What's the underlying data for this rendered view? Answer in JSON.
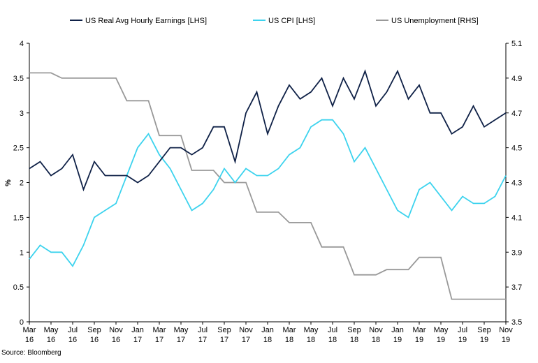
{
  "chart_data": {
    "type": "line",
    "title": "",
    "xlabel": "",
    "ylabel_left": "%",
    "ylabel_right": "",
    "ylim_left": [
      0,
      4
    ],
    "ylim_right": [
      3.5,
      5.1
    ],
    "y_ticks_left": [
      "0",
      "0.5",
      "1",
      "1.5",
      "2",
      "2.5",
      "3",
      "3.5",
      "4"
    ],
    "y_ticks_right": [
      "3.5",
      "3.7",
      "3.9",
      "4.1",
      "4.3",
      "4.5",
      "4.7",
      "4.9",
      "5.1"
    ],
    "x_tick_labels": [
      {
        "month": "Mar",
        "year": "16"
      },
      {
        "month": "May",
        "year": "16"
      },
      {
        "month": "Jul",
        "year": "16"
      },
      {
        "month": "Sep",
        "year": "16"
      },
      {
        "month": "Nov",
        "year": "16"
      },
      {
        "month": "Jan",
        "year": "17"
      },
      {
        "month": "Mar",
        "year": "17"
      },
      {
        "month": "May",
        "year": "17"
      },
      {
        "month": "Jul",
        "year": "17"
      },
      {
        "month": "Sep",
        "year": "17"
      },
      {
        "month": "Nov",
        "year": "17"
      },
      {
        "month": "Jan",
        "year": "18"
      },
      {
        "month": "Mar",
        "year": "18"
      },
      {
        "month": "May",
        "year": "18"
      },
      {
        "month": "Jul",
        "year": "18"
      },
      {
        "month": "Sep",
        "year": "18"
      },
      {
        "month": "Nov",
        "year": "18"
      },
      {
        "month": "Jan",
        "year": "19"
      },
      {
        "month": "Mar",
        "year": "19"
      },
      {
        "month": "May",
        "year": "19"
      },
      {
        "month": "Jul",
        "year": "19"
      },
      {
        "month": "Sep",
        "year": "19"
      },
      {
        "month": "Nov",
        "year": "19"
      }
    ],
    "series": [
      {
        "name": "US Real Avg Hourly Earnings [LHS]",
        "axis": "left",
        "color": "#0f2147",
        "values": [
          2.2,
          2.3,
          2.1,
          2.2,
          2.4,
          1.9,
          2.3,
          2.1,
          2.1,
          2.1,
          2.0,
          2.1,
          2.3,
          2.5,
          2.5,
          2.4,
          2.5,
          2.8,
          2.8,
          2.3,
          3.0,
          3.3,
          2.7,
          3.1,
          3.4,
          3.2,
          3.3,
          3.5,
          3.1,
          3.5,
          3.2,
          3.6,
          3.1,
          3.3,
          3.6,
          3.2,
          3.4,
          3.0,
          3.0,
          2.7,
          2.8,
          3.1,
          2.8,
          2.9,
          3.0
        ]
      },
      {
        "name": "US CPI [LHS]",
        "axis": "left",
        "color": "#3dd3ee",
        "values": [
          0.9,
          1.1,
          1.0,
          1.0,
          0.8,
          1.1,
          1.5,
          1.6,
          1.7,
          2.1,
          2.5,
          2.7,
          2.4,
          2.2,
          1.9,
          1.6,
          1.7,
          1.9,
          2.2,
          2.0,
          2.2,
          2.1,
          2.1,
          2.2,
          2.4,
          2.5,
          2.8,
          2.9,
          2.9,
          2.7,
          2.3,
          2.5,
          2.2,
          1.9,
          1.6,
          1.5,
          1.9,
          2.0,
          1.8,
          1.6,
          1.8,
          1.7,
          1.7,
          1.8,
          2.1
        ]
      },
      {
        "name": "US Unemployment [RHS]",
        "axis": "right",
        "color": "#999999",
        "values": [
          4.93,
          4.93,
          4.93,
          4.9,
          4.9,
          4.9,
          4.9,
          4.9,
          4.9,
          4.77,
          4.77,
          4.77,
          4.57,
          4.57,
          4.57,
          4.37,
          4.37,
          4.37,
          4.3,
          4.3,
          4.3,
          4.13,
          4.13,
          4.13,
          4.07,
          4.07,
          4.07,
          3.93,
          3.93,
          3.93,
          3.77,
          3.77,
          3.77,
          3.8,
          3.8,
          3.8,
          3.87,
          3.87,
          3.87,
          3.63,
          3.63,
          3.63,
          3.63,
          3.63,
          3.63
        ]
      }
    ],
    "source": "Source: Bloomberg"
  }
}
